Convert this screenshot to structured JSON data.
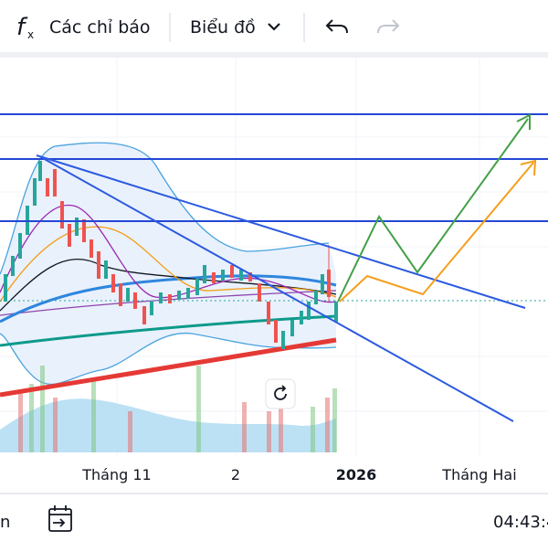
{
  "toolbar": {
    "indicators": "Các chỉ báo",
    "chart_type": "Biểu đồ"
  },
  "time_axis": [
    "Tháng 11",
    "2",
    "2026",
    "Tháng Hai"
  ],
  "footer": {
    "left": "n",
    "time": "04:43:4"
  }
}
